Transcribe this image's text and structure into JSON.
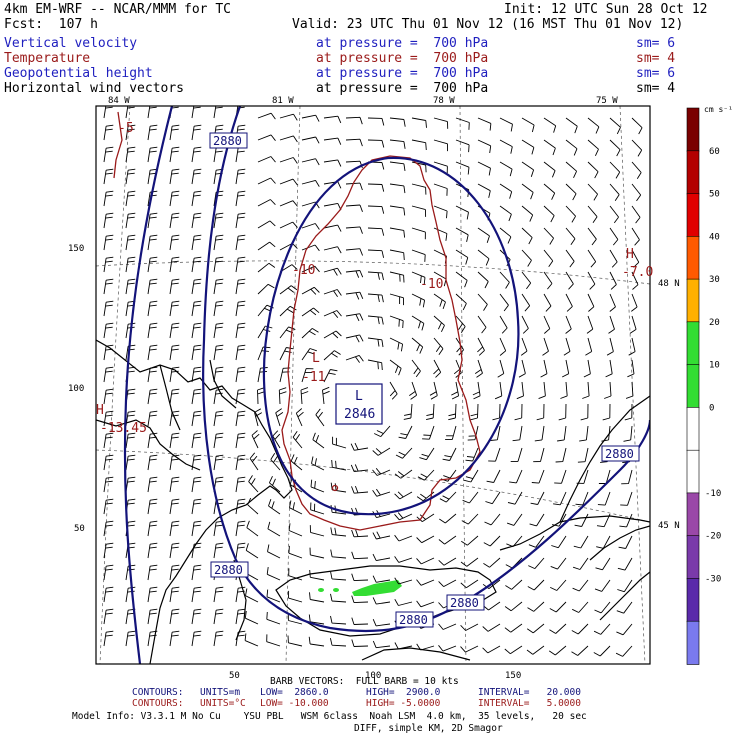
{
  "header": {
    "model": "4km EM-WRF -- NCAR/MMM for TC",
    "init": "Init: 12 UTC Sun 28 Oct 12",
    "fcst": "Fcst:  107 h",
    "valid": "Valid: 23 UTC Thu 01 Nov 12 (16 MST Thu 01 Nov 12)"
  },
  "fields": [
    {
      "name": "Vertical velocity",
      "level": "at pressure =  700 hPa",
      "sm": "sm= 6",
      "color": "#1f1fbf"
    },
    {
      "name": "Temperature",
      "level": "at pressure =  700 hPa",
      "sm": "sm= 4",
      "color": "#9a1a1a"
    },
    {
      "name": "Geopotential height",
      "level": "at pressure =  700 hPa",
      "sm": "sm= 6",
      "color": "#1f1fbf"
    },
    {
      "name": "Horizontal wind vectors",
      "level": "at pressure =  700 hPa",
      "sm": "sm= 4",
      "color": "#000000"
    }
  ],
  "map": {
    "lon_labels": [
      "84 W",
      "81 W",
      "78 W",
      "75 W"
    ],
    "lat_labels": [
      "48 N",
      "45 N"
    ],
    "y_ticks": [
      "150",
      "100",
      "50"
    ],
    "x_ticks": [
      "50",
      "100",
      "150"
    ],
    "height_labels": [
      "2880",
      "2880",
      "2880",
      "2880",
      "2880"
    ],
    "low_center": {
      "symbol": "L",
      "value": "2846"
    },
    "high_symbol": "H",
    "temp_labels": [
      "-5",
      "-10",
      "-10",
      "-11",
      "-7.0",
      "-10",
      "-13.45"
    ],
    "colors": {
      "height": "#13137a",
      "temperature": "#9a1a1a",
      "wind": "#000000",
      "uplift": "#33dd33"
    }
  },
  "colorbar": {
    "units": "cm s⁻¹",
    "labels": [
      "60",
      "50",
      "40",
      "30",
      "20",
      "10",
      "0",
      "-10",
      "-20",
      "-30"
    ],
    "colors": [
      "#7a0000",
      "#b30000",
      "#e00000",
      "#ff5a00",
      "#ffb000",
      "#33dd33",
      "#33dd33",
      "#ffffff",
      "#ffffff",
      "#9a48a8",
      "#7a3aaa",
      "#5a2aaa",
      "#7a7aee"
    ]
  },
  "footer": {
    "barb": "BARB VECTORS:  FULL BARB = 10 kts",
    "contours1": {
      "label": "CONTOURS:",
      "units": "UNITS=m",
      "low": "LOW=  2860.0",
      "high": "HIGH=  2900.0",
      "interval": "INTERVAL=   20.000"
    },
    "contours2": {
      "label": "CONTOURS:",
      "units": "UNITS=°C",
      "low": "LOW= -10.000",
      "high": "HIGH= -5.0000",
      "interval": "INTERVAL=   5.0000"
    },
    "model_info": "Model Info: V3.3.1 M No Cu    YSU PBL   WSM 6class  Noah LSM  4.0 km,  35 levels,   20 sec",
    "diff": "DIFF, simple KM, 2D Smagor"
  }
}
